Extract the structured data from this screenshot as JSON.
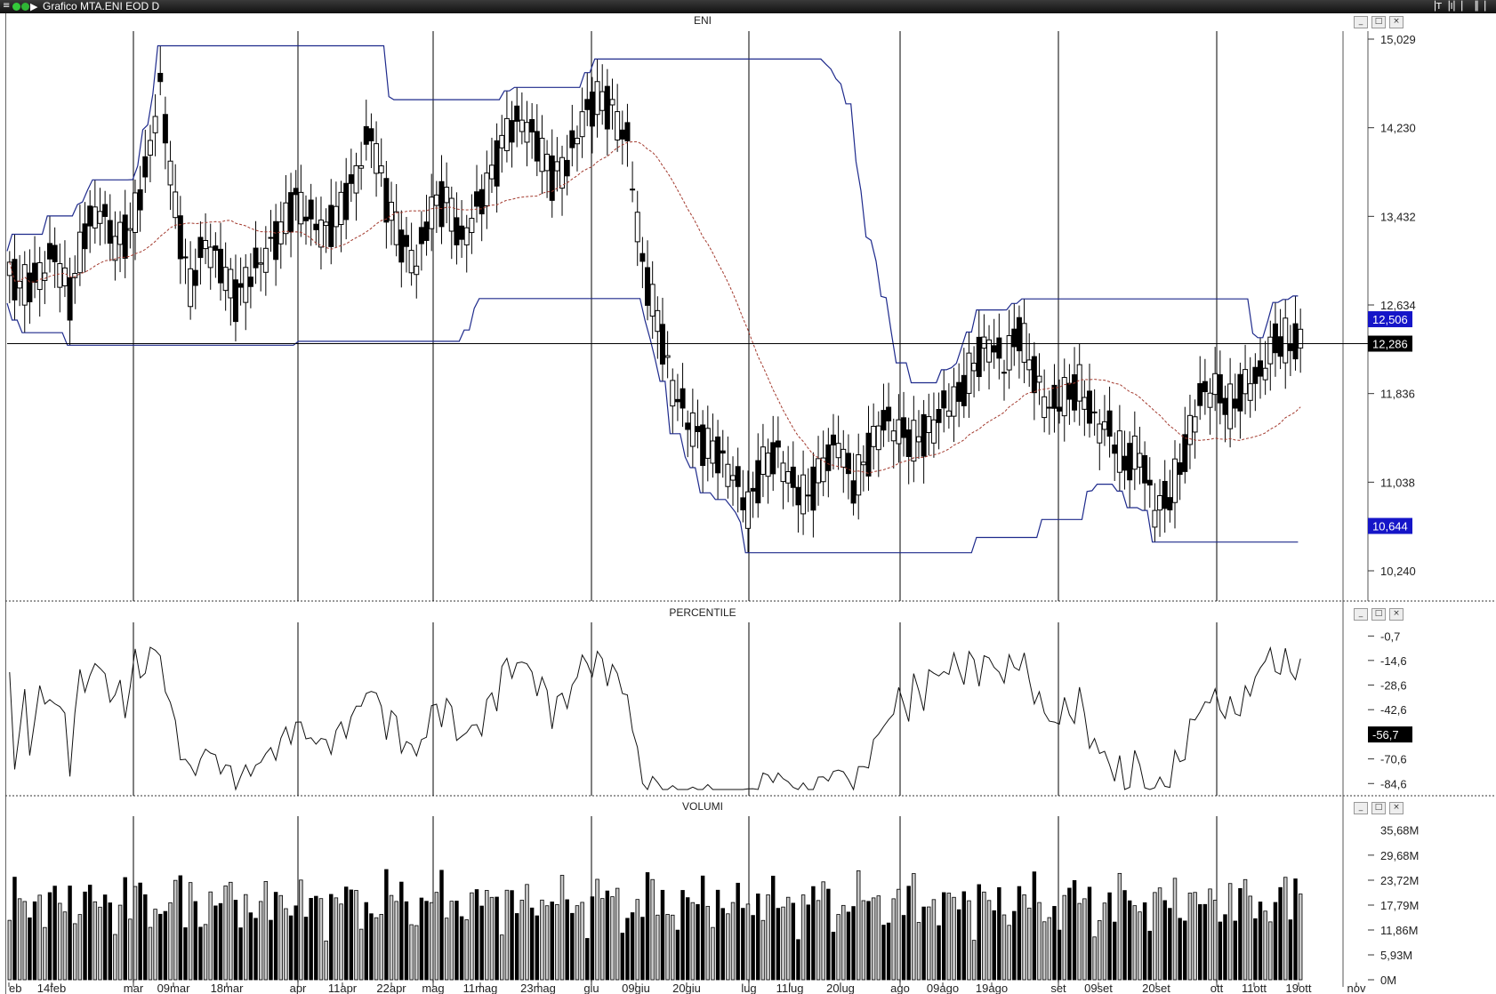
{
  "window": {
    "title": "Grafico MTA.ENI EOD D",
    "menu_icon": "menu-icon",
    "status_dots": [
      {
        "name": "green-dot-icon",
        "color": "#34c93a"
      },
      {
        "name": "green-dot-icon-2",
        "color": "#2fb535"
      }
    ],
    "arrow_icon": "play-arrow-icon",
    "right_controls": "▕T▕I▏▏▕▏▏"
  },
  "colors": {
    "candle_up": "#ffffff",
    "candle_down": "#000000",
    "band": "#1e2a8c",
    "moving_average": "#a33a2e",
    "price_label_bg": "#1515c8",
    "current_label_bg": "#000000",
    "gridline": "#000000"
  },
  "panes": {
    "price": {
      "title": "ENI",
      "y_ticks": [
        "15,029",
        "14,230",
        "13,432",
        "12,634",
        "11,836",
        "11,038",
        "10,240"
      ],
      "upper_band_label": "12,506",
      "current_price_label": "12,286",
      "lower_band_label": "10,644"
    },
    "percentile": {
      "title": "PERCENTILE",
      "y_ticks": [
        "-0,7",
        "-14,6",
        "-28,6",
        "-42,6",
        "-70,6",
        "-84,6"
      ],
      "current_label": "-56,7"
    },
    "volume": {
      "title": "VOLUMI",
      "y_ticks": [
        "29,68M",
        "23,72M",
        "17,79M",
        "11,86M",
        "5,93M",
        "0M"
      ],
      "top_label": "35,68M"
    }
  },
  "x_axis": {
    "labels": [
      "eb",
      "14feb",
      "mar",
      "09mar",
      "18mar",
      "apr",
      "11apr",
      "22apr",
      "mag",
      "11mag",
      "23mag",
      "giu",
      "09giu",
      "20giu",
      "lug",
      "11lug",
      "20lug",
      "ago",
      "09ago",
      "19ago",
      "set",
      "09set",
      "20set",
      "ott",
      "11ott",
      "19ott",
      "nov"
    ]
  },
  "chart_data": {
    "type": "candlestick",
    "title": "ENI",
    "ylim": [
      10.24,
      15.029
    ],
    "series": [
      {
        "name": "ENI",
        "values": [
          12.9,
          12.8,
          12.9,
          13.1,
          12.7,
          13.3,
          13.5,
          13.2,
          13.3,
          13.8,
          14.6,
          13.5,
          12.8,
          13.2,
          13.0,
          12.7,
          12.9,
          13.1,
          13.3,
          13.6,
          13.4,
          13.3,
          13.5,
          13.8,
          14.2,
          13.6,
          13.2,
          13.0,
          13.5,
          13.6,
          13.2,
          13.5,
          13.8,
          14.2,
          14.3,
          14.1,
          13.8,
          13.9,
          14.3,
          14.5,
          14.4,
          14.1,
          13.0,
          12.5,
          11.9,
          11.6,
          11.4,
          11.3,
          11.1,
          10.8,
          11.2,
          11.3,
          11.0,
          10.9,
          11.2,
          11.4,
          11.0,
          11.3,
          11.6,
          11.5,
          11.4,
          11.5,
          11.7,
          11.8,
          12.1,
          12.3,
          12.1,
          12.4,
          12.0,
          11.7,
          11.8,
          11.9,
          11.6,
          11.5,
          11.2,
          11.3,
          10.8,
          10.9,
          11.3,
          11.8,
          11.9,
          11.7,
          11.9,
          12.0,
          12.3,
          12.286
        ]
      }
    ],
    "bands": {
      "upper": "donchian high",
      "lower": "donchian low"
    },
    "grid": true
  }
}
